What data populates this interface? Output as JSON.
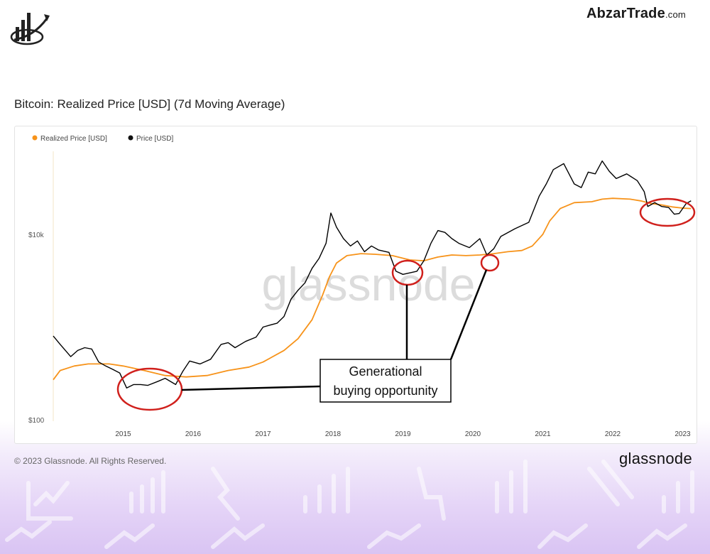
{
  "brand": {
    "name": "AbzarTrade",
    "suffix": ".com"
  },
  "footer": {
    "copyright": "© 2023 Glassnode. All Rights Reserved.",
    "brand": "glassnode"
  },
  "watermark": "glassnode",
  "annotation": {
    "line1": "Generational",
    "line2": "buying opportunity"
  },
  "colors": {
    "realized": "#f7931a",
    "price": "#000000",
    "circle": "#d0201c",
    "accent_bg": "#dcc8f4"
  },
  "chart_data": {
    "type": "line",
    "title": "Bitcoin: Realized Price [USD] (7d Moving Average)",
    "yscale": "log",
    "ylim": [
      100,
      100000
    ],
    "yticks": [
      {
        "v": 100,
        "label": "$100"
      },
      {
        "v": 10000,
        "label": "$10k"
      }
    ],
    "xticks": [
      {
        "t": 2015,
        "label": "2015"
      },
      {
        "t": 2016,
        "label": "2016"
      },
      {
        "t": 2017,
        "label": "2017"
      },
      {
        "t": 2018,
        "label": "2018"
      },
      {
        "t": 2019,
        "label": "2019"
      },
      {
        "t": 2020,
        "label": "2020"
      },
      {
        "t": 2021,
        "label": "2021"
      },
      {
        "t": 2022,
        "label": "2022"
      },
      {
        "t": 2023,
        "label": "2023"
      }
    ],
    "legend_position": "top-left",
    "series": [
      {
        "name": "Realized Price [USD]",
        "color": "#f7931a",
        "points": [
          [
            2014.0,
            270
          ],
          [
            2014.1,
            340
          ],
          [
            2014.3,
            380
          ],
          [
            2014.5,
            400
          ],
          [
            2014.8,
            400
          ],
          [
            2015.0,
            380
          ],
          [
            2015.3,
            340
          ],
          [
            2015.6,
            300
          ],
          [
            2015.9,
            290
          ],
          [
            2016.2,
            300
          ],
          [
            2016.5,
            340
          ],
          [
            2016.8,
            370
          ],
          [
            2017.0,
            420
          ],
          [
            2017.3,
            560
          ],
          [
            2017.5,
            750
          ],
          [
            2017.7,
            1200
          ],
          [
            2017.85,
            2200
          ],
          [
            2017.95,
            3500
          ],
          [
            2018.05,
            4900
          ],
          [
            2018.2,
            5900
          ],
          [
            2018.4,
            6200
          ],
          [
            2018.6,
            6100
          ],
          [
            2018.85,
            5900
          ],
          [
            2019.1,
            5300
          ],
          [
            2019.3,
            5200
          ],
          [
            2019.5,
            5700
          ],
          [
            2019.7,
            6000
          ],
          [
            2019.9,
            5900
          ],
          [
            2020.1,
            6000
          ],
          [
            2020.3,
            6200
          ],
          [
            2020.5,
            6500
          ],
          [
            2020.7,
            6700
          ],
          [
            2020.85,
            7500
          ],
          [
            2021.0,
            10000
          ],
          [
            2021.1,
            14000
          ],
          [
            2021.25,
            19000
          ],
          [
            2021.45,
            22000
          ],
          [
            2021.7,
            22500
          ],
          [
            2021.85,
            24000
          ],
          [
            2022.0,
            24500
          ],
          [
            2022.25,
            24000
          ],
          [
            2022.4,
            23000
          ],
          [
            2022.55,
            21500
          ],
          [
            2022.7,
            20800
          ],
          [
            2022.85,
            19800
          ],
          [
            2023.0,
            19200
          ],
          [
            2023.12,
            19000
          ]
        ]
      },
      {
        "name": "Price [USD]",
        "color": "#000000",
        "points": [
          [
            2014.0,
            800
          ],
          [
            2014.1,
            650
          ],
          [
            2014.25,
            480
          ],
          [
            2014.35,
            560
          ],
          [
            2014.45,
            600
          ],
          [
            2014.55,
            580
          ],
          [
            2014.65,
            420
          ],
          [
            2014.75,
            380
          ],
          [
            2014.85,
            350
          ],
          [
            2014.95,
            320
          ],
          [
            2015.05,
            220
          ],
          [
            2015.15,
            240
          ],
          [
            2015.25,
            240
          ],
          [
            2015.35,
            235
          ],
          [
            2015.5,
            260
          ],
          [
            2015.6,
            280
          ],
          [
            2015.75,
            240
          ],
          [
            2015.85,
            330
          ],
          [
            2015.95,
            430
          ],
          [
            2016.1,
            400
          ],
          [
            2016.25,
            450
          ],
          [
            2016.4,
            650
          ],
          [
            2016.5,
            680
          ],
          [
            2016.6,
            600
          ],
          [
            2016.75,
            700
          ],
          [
            2016.9,
            780
          ],
          [
            2017.0,
            1000
          ],
          [
            2017.1,
            1050
          ],
          [
            2017.2,
            1100
          ],
          [
            2017.3,
            1300
          ],
          [
            2017.4,
            2000
          ],
          [
            2017.5,
            2500
          ],
          [
            2017.6,
            3000
          ],
          [
            2017.7,
            4300
          ],
          [
            2017.8,
            5500
          ],
          [
            2017.9,
            8000
          ],
          [
            2017.97,
            17000
          ],
          [
            2018.05,
            12000
          ],
          [
            2018.15,
            9000
          ],
          [
            2018.25,
            7500
          ],
          [
            2018.35,
            8500
          ],
          [
            2018.45,
            6500
          ],
          [
            2018.55,
            7500
          ],
          [
            2018.65,
            6800
          ],
          [
            2018.8,
            6400
          ],
          [
            2018.9,
            4000
          ],
          [
            2019.0,
            3700
          ],
          [
            2019.2,
            4000
          ],
          [
            2019.3,
            5200
          ],
          [
            2019.4,
            8000
          ],
          [
            2019.5,
            11000
          ],
          [
            2019.6,
            10500
          ],
          [
            2019.7,
            9000
          ],
          [
            2019.8,
            8000
          ],
          [
            2019.95,
            7200
          ],
          [
            2020.1,
            9000
          ],
          [
            2020.2,
            6000
          ],
          [
            2020.3,
            7000
          ],
          [
            2020.4,
            9500
          ],
          [
            2020.6,
            11500
          ],
          [
            2020.8,
            13500
          ],
          [
            2020.95,
            26000
          ],
          [
            2021.05,
            35000
          ],
          [
            2021.15,
            50000
          ],
          [
            2021.3,
            58000
          ],
          [
            2021.45,
            35000
          ],
          [
            2021.55,
            32000
          ],
          [
            2021.65,
            47000
          ],
          [
            2021.75,
            45000
          ],
          [
            2021.85,
            62000
          ],
          [
            2021.95,
            48000
          ],
          [
            2022.05,
            40000
          ],
          [
            2022.2,
            45000
          ],
          [
            2022.35,
            38000
          ],
          [
            2022.45,
            29000
          ],
          [
            2022.5,
            20000
          ],
          [
            2022.6,
            22000
          ],
          [
            2022.7,
            20000
          ],
          [
            2022.8,
            19500
          ],
          [
            2022.88,
            16500
          ],
          [
            2022.95,
            16800
          ],
          [
            2023.05,
            21500
          ],
          [
            2023.12,
            23000
          ]
        ]
      }
    ]
  }
}
